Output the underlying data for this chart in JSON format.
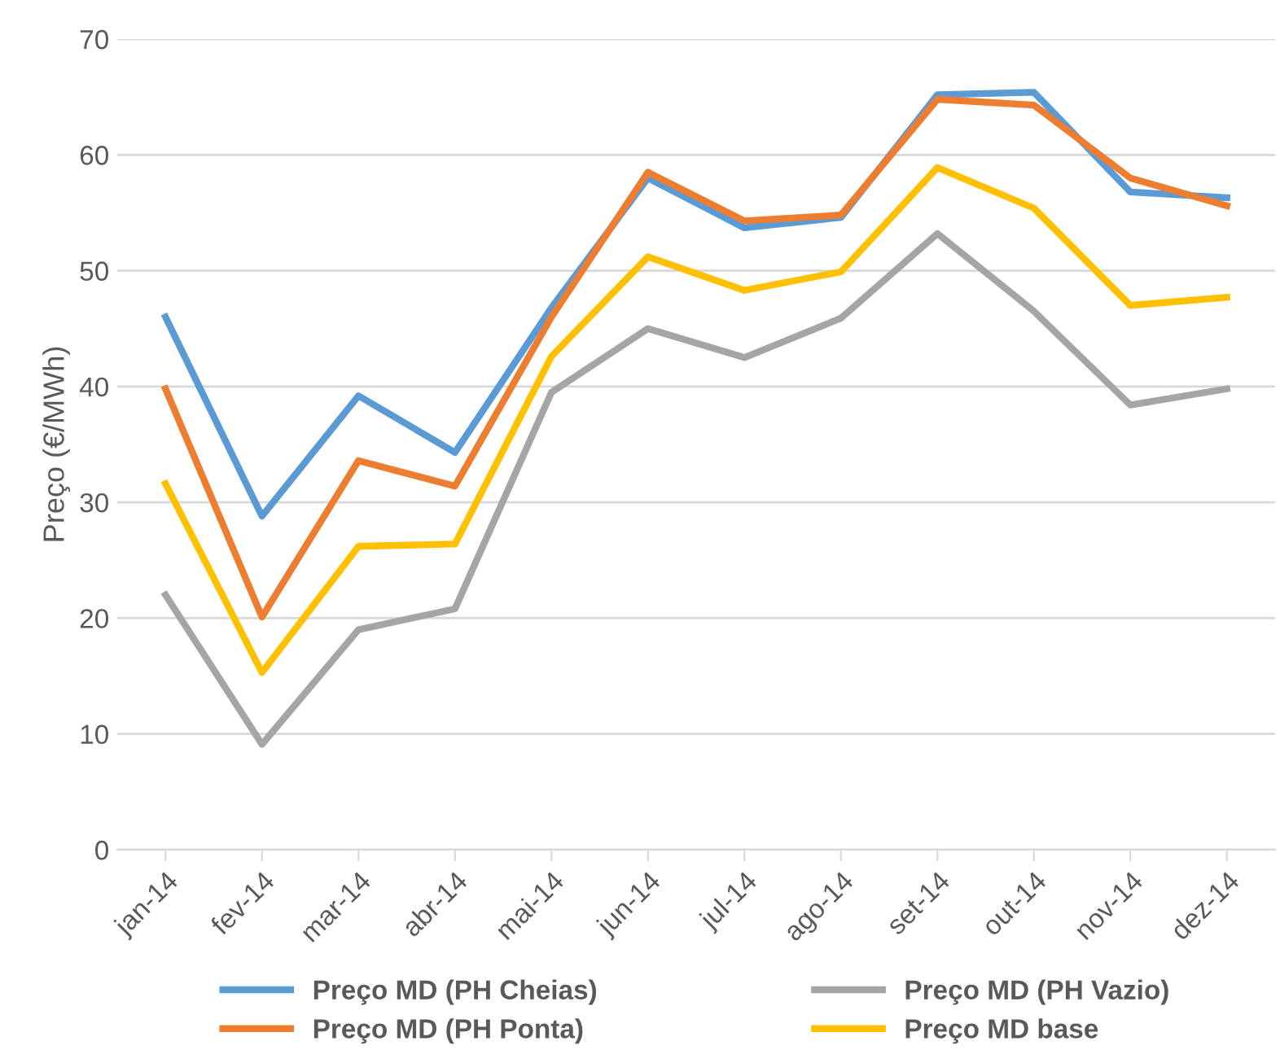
{
  "chart_data": {
    "type": "line",
    "ylabel": "Preço (€/MWh)",
    "categories": [
      "jan-14",
      "fev-14",
      "mar-14",
      "abr-14",
      "mai-14",
      "jun-14",
      "jul-14",
      "ago-14",
      "set-14",
      "out-14",
      "nov-14",
      "dez-14"
    ],
    "series": [
      {
        "name": "Preço MD (PH Cheias)",
        "color": "#5b9bd5",
        "values": [
          46.0,
          28.8,
          39.2,
          34.3,
          46.8,
          58.0,
          53.7,
          54.6,
          65.2,
          65.4,
          56.8,
          56.3
        ]
      },
      {
        "name": "Preço MD (PH Ponta)",
        "color": "#ed7d31",
        "values": [
          39.8,
          20.1,
          33.6,
          31.4,
          46.0,
          58.5,
          54.3,
          54.8,
          64.8,
          64.3,
          58.0,
          55.6
        ]
      },
      {
        "name": "Preço MD (PH Vazio)",
        "color": "#a5a5a5",
        "values": [
          22.0,
          9.1,
          19.0,
          20.8,
          39.5,
          45.0,
          42.5,
          45.9,
          53.2,
          46.5,
          38.4,
          39.8
        ]
      },
      {
        "name": "Preço MD base",
        "color": "#ffc000",
        "values": [
          31.6,
          15.3,
          26.2,
          26.4,
          42.6,
          51.2,
          48.3,
          49.9,
          58.9,
          55.4,
          47.0,
          47.7
        ]
      }
    ],
    "ylim": [
      0,
      70
    ],
    "yticks": [
      0,
      10,
      20,
      30,
      40,
      50,
      60,
      70
    ],
    "grid": "y",
    "legend": "bottom",
    "marker": "none",
    "line_style": "solid"
  }
}
